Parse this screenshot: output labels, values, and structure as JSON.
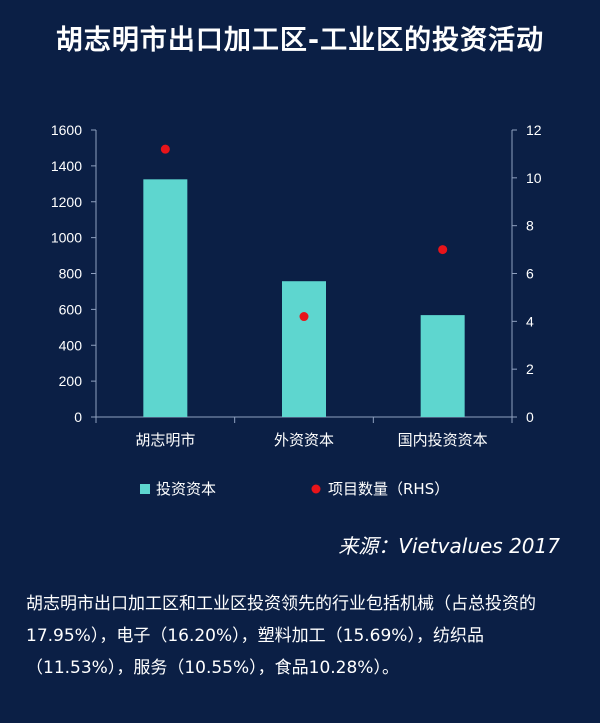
{
  "title": "胡志明市出口加工区-工业区的投资活动",
  "source": "来源：Vietvalues 2017",
  "note": "胡志明市出口加工区和工业区投资领先的行业包括机械（占总投资的17.95%），电子（16.20%），塑料加工（15.69%），纺织品（11.53%），服务（10.55%），食品10.28%）。",
  "chart_data": {
    "type": "bar",
    "categories": [
      "胡志明市",
      "外资资本",
      "国内投资资本"
    ],
    "series": [
      {
        "name": "投资资本",
        "type": "bar",
        "axis": "left",
        "values": [
          1325,
          757,
          568
        ],
        "color": "#5ed6cf"
      },
      {
        "name": "项目数量（RHS）",
        "type": "scatter",
        "axis": "right",
        "values": [
          11.2,
          4.2,
          7.0
        ],
        "color": "#e8141a"
      }
    ],
    "ylim": [
      0,
      1600
    ],
    "y_ticks": [
      0,
      200,
      400,
      600,
      800,
      1000,
      1200,
      1400,
      1600
    ],
    "y2lim": [
      0,
      12
    ],
    "y2_ticks": [
      0,
      2,
      4,
      6,
      8,
      10,
      12
    ],
    "legend_position": "bottom",
    "grid": false
  }
}
